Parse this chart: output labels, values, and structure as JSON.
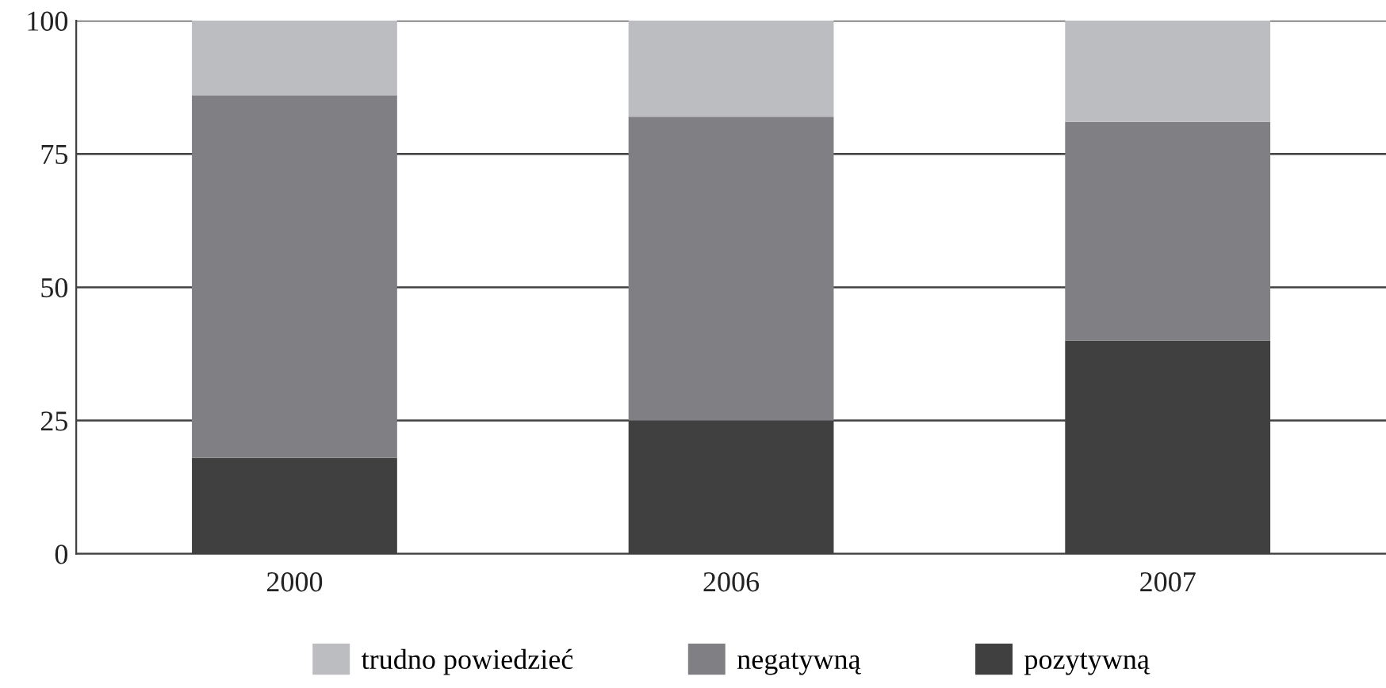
{
  "chart_data": {
    "type": "bar",
    "stacked": true,
    "categories": [
      "2000",
      "2006",
      "2007"
    ],
    "series": [
      {
        "name": "pozytywną",
        "color": "#404040",
        "values": [
          18,
          25,
          40
        ]
      },
      {
        "name": "negatywną",
        "color": "#808084",
        "values": [
          68,
          57,
          41
        ]
      },
      {
        "name": "trudno powiedzieć",
        "color": "#bcbdc1",
        "values": [
          14,
          18,
          19
        ]
      }
    ],
    "ylim": [
      0,
      100
    ],
    "yticks": [
      0,
      25,
      50,
      75,
      100
    ],
    "grid": "y",
    "legend": "bottom"
  }
}
